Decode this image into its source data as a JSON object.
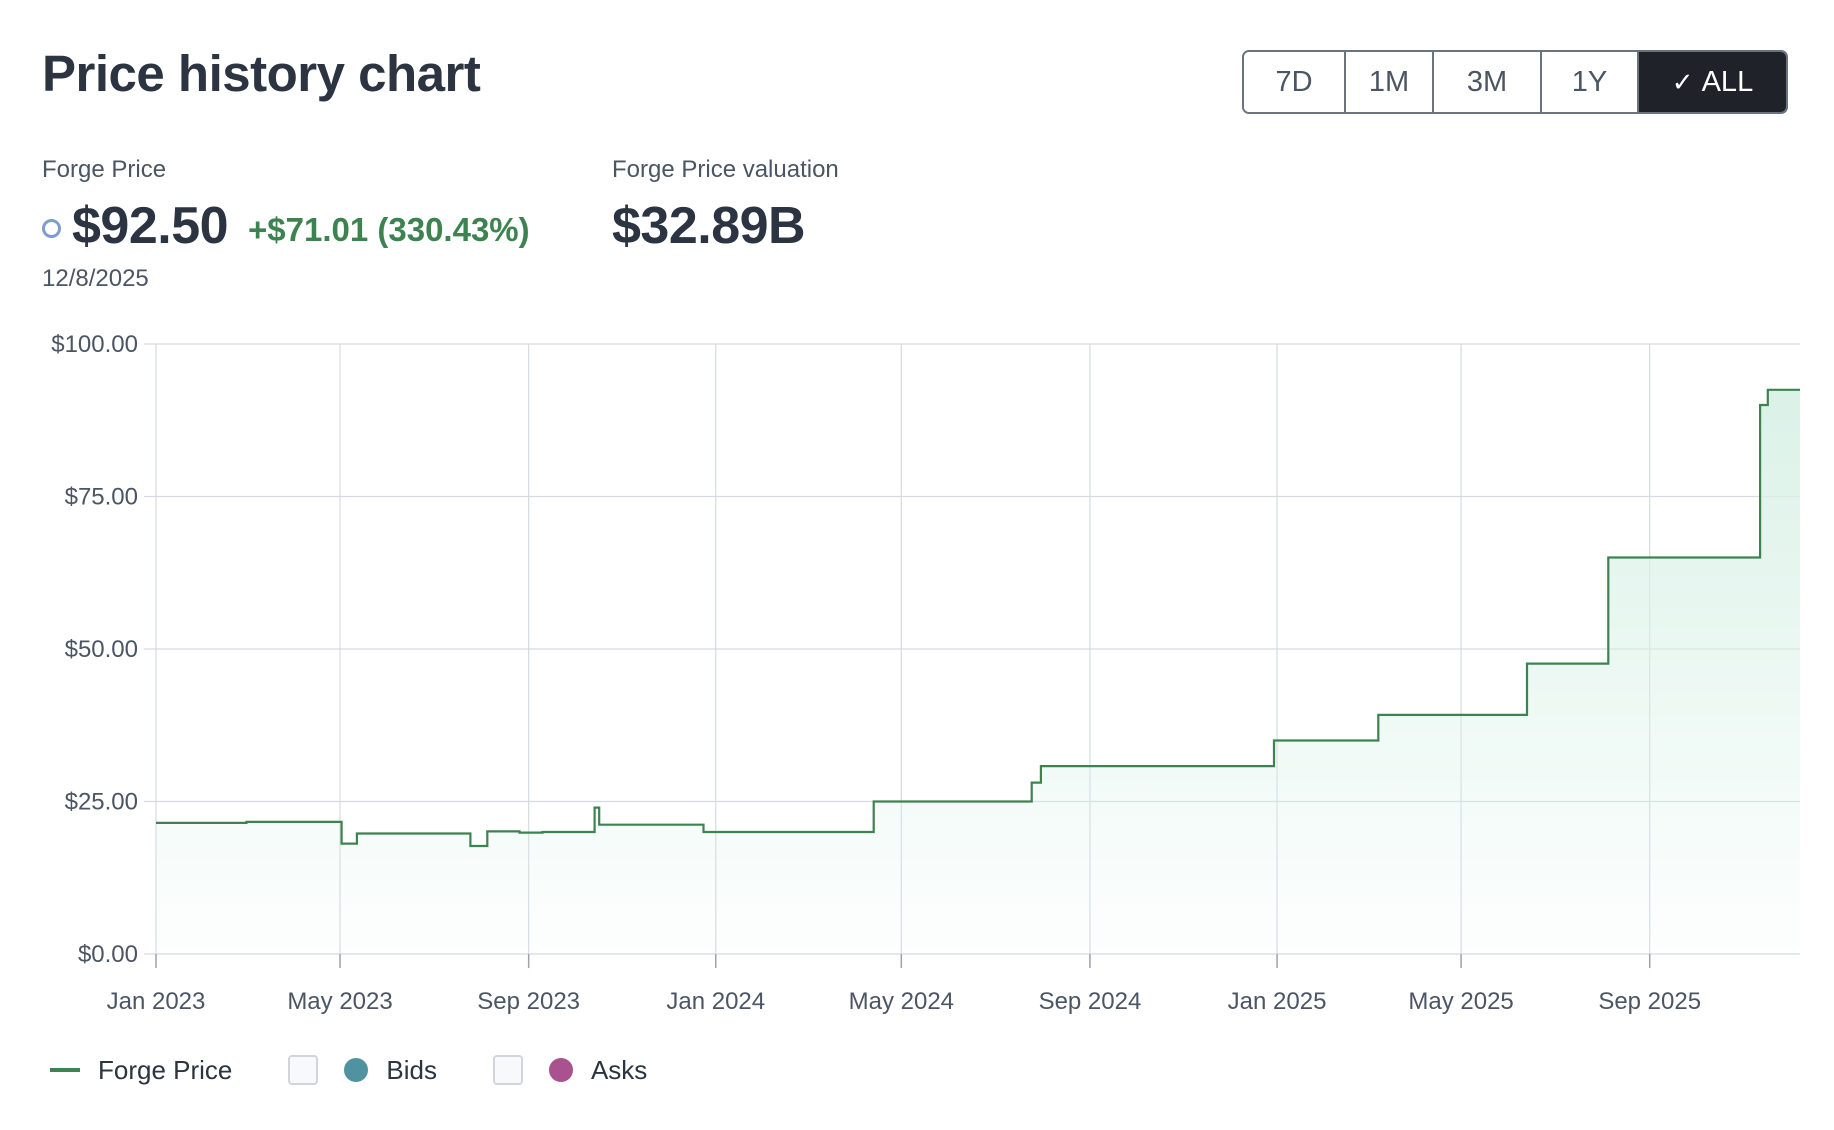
{
  "header": {
    "title": "Price history chart"
  },
  "ranges": [
    "7D",
    "1M",
    "3M",
    "1Y",
    "ALL"
  ],
  "active_range": "ALL",
  "stats": {
    "price_label": "Forge Price",
    "price_value": "$92.50",
    "price_change": "+$71.01 (330.43%)",
    "price_date": "12/8/2025",
    "valuation_label": "Forge Price valuation",
    "valuation_value": "$32.89B"
  },
  "legend": {
    "price": "Forge Price",
    "bids": "Bids",
    "asks": "Asks"
  },
  "colors": {
    "line": "#3c8350",
    "fill": "#e3f5ee",
    "bids": "#4f93a0",
    "asks": "#a9528f",
    "ring": "#7f9cd0",
    "active_button": "#1f2329"
  },
  "chart_data": {
    "type": "area",
    "step": true,
    "title": "",
    "xlabel": "",
    "ylabel": "",
    "ylim": [
      0,
      100
    ],
    "yticks": [
      0,
      25,
      50,
      75,
      100
    ],
    "ytick_labels": [
      "$0.00",
      "$25.00",
      "$50.00",
      "$75.00",
      "$100.00"
    ],
    "xlim": [
      "2023-01-01",
      "2025-12-08"
    ],
    "xticks": [
      "2023-01-01",
      "2023-05-01",
      "2023-09-01",
      "2024-01-01",
      "2024-05-01",
      "2024-09-01",
      "2025-01-01",
      "2025-05-01",
      "2025-09-01"
    ],
    "xtick_labels": [
      "Jan 2023",
      "May 2023",
      "Sep 2023",
      "Jan 2024",
      "May 2024",
      "Sep 2024",
      "Jan 2025",
      "May 2025",
      "Sep 2025"
    ],
    "grid": true,
    "legend_position": "bottom-left",
    "series": [
      {
        "name": "Forge Price",
        "x": [
          "2023-01-01",
          "2023-03-01",
          "2023-05-02",
          "2023-05-12",
          "2023-07-25",
          "2023-08-05",
          "2023-08-26",
          "2023-09-10",
          "2023-10-14",
          "2023-10-17",
          "2023-12-24",
          "2024-04-13",
          "2024-07-25",
          "2024-07-31",
          "2024-12-30",
          "2025-03-08",
          "2025-06-13",
          "2025-08-05",
          "2025-11-12",
          "2025-11-17",
          "2025-12-08"
        ],
        "y": [
          21.49,
          21.65,
          18.1,
          19.75,
          17.7,
          20.1,
          19.9,
          20.0,
          24.0,
          21.2,
          20.0,
          25.0,
          28.1,
          30.8,
          35.0,
          39.2,
          47.6,
          65.0,
          90.0,
          92.5,
          92.5
        ]
      }
    ]
  }
}
